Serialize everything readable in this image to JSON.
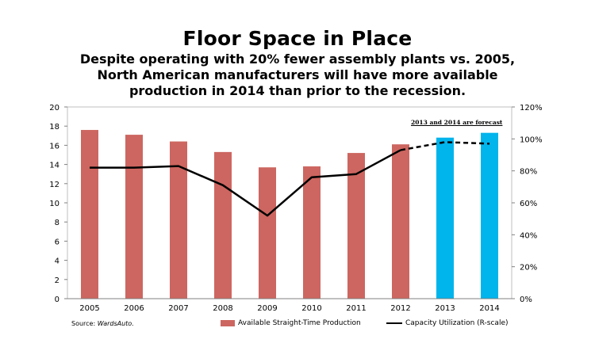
{
  "chart_data": {
    "type": "bar",
    "title": "Floor Space in Place",
    "subtitle_lines": [
      "Despite operating with 20% fewer assembly plants vs. 2005,",
      "North American manufacturers will have more available",
      "production in 2014 than prior to the recession."
    ],
    "categories": [
      "2005",
      "2006",
      "2007",
      "2008",
      "2009",
      "2010",
      "2011",
      "2012",
      "2013",
      "2014"
    ],
    "ylim": [
      0,
      20
    ],
    "y_ticks": [
      "0",
      "2",
      "4",
      "6",
      "8",
      "10",
      "12",
      "14",
      "16",
      "18",
      "20"
    ],
    "y2lim": [
      0,
      120
    ],
    "y2_ticks": [
      "0%",
      "20%",
      "40%",
      "60%",
      "80%",
      "100%",
      "120%"
    ],
    "series": [
      {
        "name": "Available Straight-Time Production",
        "type": "bar",
        "axis": "left",
        "values": [
          17.6,
          17.1,
          16.4,
          15.3,
          13.7,
          13.8,
          15.2,
          16.1,
          16.8,
          17.3
        ],
        "colors": [
          "#cd6660",
          "#cd6660",
          "#cd6660",
          "#cd6660",
          "#cd6660",
          "#cd6660",
          "#cd6660",
          "#cd6660",
          "#00b4ec",
          "#00b4ec"
        ]
      },
      {
        "name": "Capacity Utilization (R-scale)",
        "type": "line",
        "axis": "right",
        "values": [
          82,
          82,
          83,
          71,
          52,
          76,
          78,
          93,
          98,
          97
        ],
        "forecast_from_index": 7
      }
    ],
    "annotation": "2013 and 2014 are forecast",
    "source_label": "Source: ",
    "source_name": "WardsAuto.",
    "grid": false,
    "legend_position": "bottom"
  },
  "colors": {
    "historical_bar": "#cd6660",
    "forecast_bar": "#00b4ec",
    "line": "#000000"
  }
}
